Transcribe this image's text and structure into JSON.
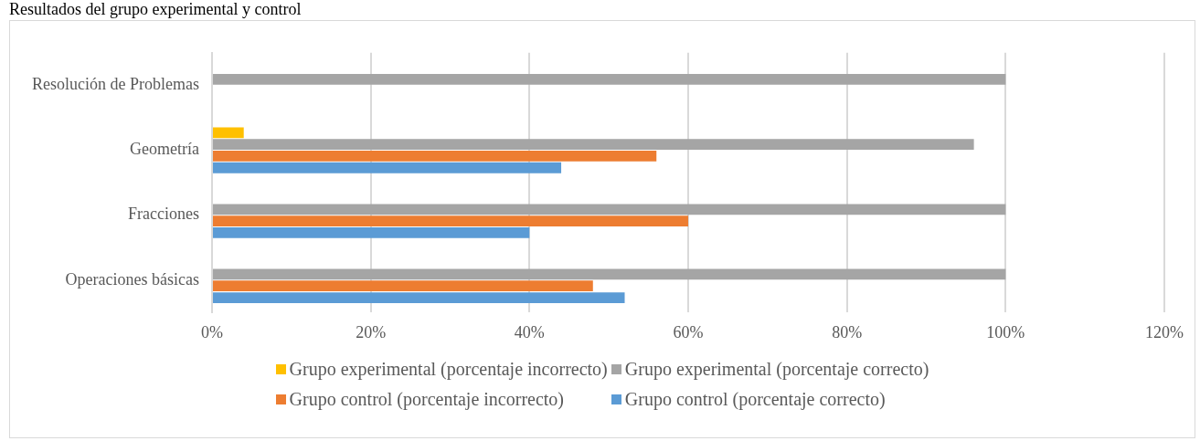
{
  "chart_data": {
    "type": "bar",
    "orientation": "horizontal",
    "title": "Resultados del grupo experimental y control",
    "categories": [
      "Resolución de Problemas",
      "Geometría",
      "Fracciones",
      "Operaciones básicas"
    ],
    "series": [
      {
        "name": "Grupo experimental (porcentaje incorrecto)",
        "color": "#ffc000",
        "values": [
          0,
          4,
          0,
          0
        ]
      },
      {
        "name": "Grupo experimental (porcentaje correcto)",
        "color": "#a5a5a5",
        "values": [
          100,
          96,
          100,
          100
        ]
      },
      {
        "name": "Grupo control (porcentaje incorrecto)",
        "color": "#ed7d31",
        "values": [
          0,
          56,
          60,
          48
        ]
      },
      {
        "name": "Grupo control (porcentaje correcto)",
        "color": "#5b9bd5",
        "values": [
          0,
          44,
          40,
          52
        ]
      }
    ],
    "xlim": [
      0,
      120
    ],
    "xticks": [
      {
        "value": 0,
        "label": "0%"
      },
      {
        "value": 20,
        "label": "20%"
      },
      {
        "value": 40,
        "label": "40%"
      },
      {
        "value": 60,
        "label": "60%"
      },
      {
        "value": 80,
        "label": "80%"
      },
      {
        "value": 100,
        "label": "100%"
      },
      {
        "value": 120,
        "label": "120%"
      }
    ],
    "grid": "x",
    "legend": "bottom"
  }
}
